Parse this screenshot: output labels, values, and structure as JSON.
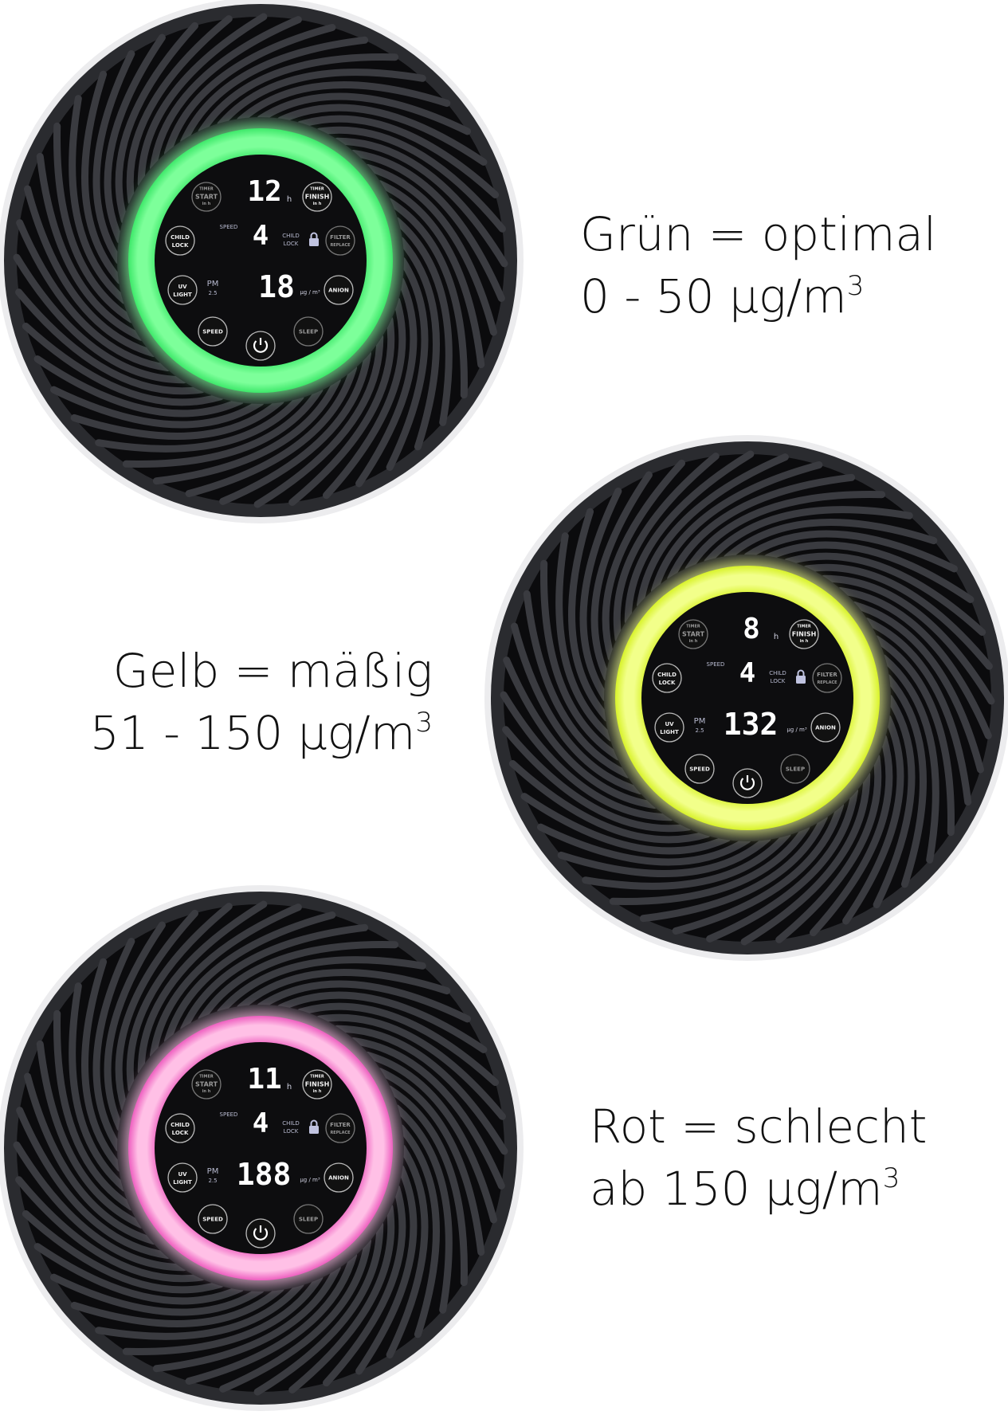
{
  "buttons": {
    "timer_start": [
      "TIMER",
      "START",
      "in h"
    ],
    "timer_finish": [
      "TIMER",
      "FINISH",
      "in h"
    ],
    "child_lock": [
      "CHILD",
      "LOCK"
    ],
    "filter_replace": [
      "FILTER",
      "REPLACE"
    ],
    "uv_light": [
      "UV",
      "LIGHT"
    ],
    "anion": [
      "ANION"
    ],
    "speed": [
      "SPEED"
    ],
    "sleep": [
      "SLEEP"
    ]
  },
  "display_labels": {
    "speed": "SPEED",
    "child_lock": [
      "CHILD",
      "LOCK"
    ],
    "pm": [
      "PM",
      "2.5"
    ],
    "hours_unit": "h",
    "pm_unit": "µg / m³"
  },
  "purifiers": [
    {
      "state": "green",
      "ring_color": "#7dff9a",
      "ring_edge": "#3ee86a",
      "timer": "12",
      "speed": "4",
      "pm": "18"
    },
    {
      "state": "yellow",
      "ring_color": "#f2ff8a",
      "ring_edge": "#d8f22a",
      "timer": "8",
      "speed": "4",
      "pm": "132"
    },
    {
      "state": "red",
      "ring_color": "#ffc0e6",
      "ring_edge": "#ee5fc0",
      "timer": "11",
      "speed": "4",
      "pm": "188"
    }
  ],
  "legends": [
    {
      "line1": "Grün = optimal",
      "line2": "0 - 50 µg/m",
      "sup": "3"
    },
    {
      "line1": "Gelb = mäßig",
      "line2": "51 - 150 µg/m",
      "sup": "3"
    },
    {
      "line1": "Rot = schlecht",
      "line2": "ab 150 µg/m",
      "sup": "3"
    }
  ]
}
